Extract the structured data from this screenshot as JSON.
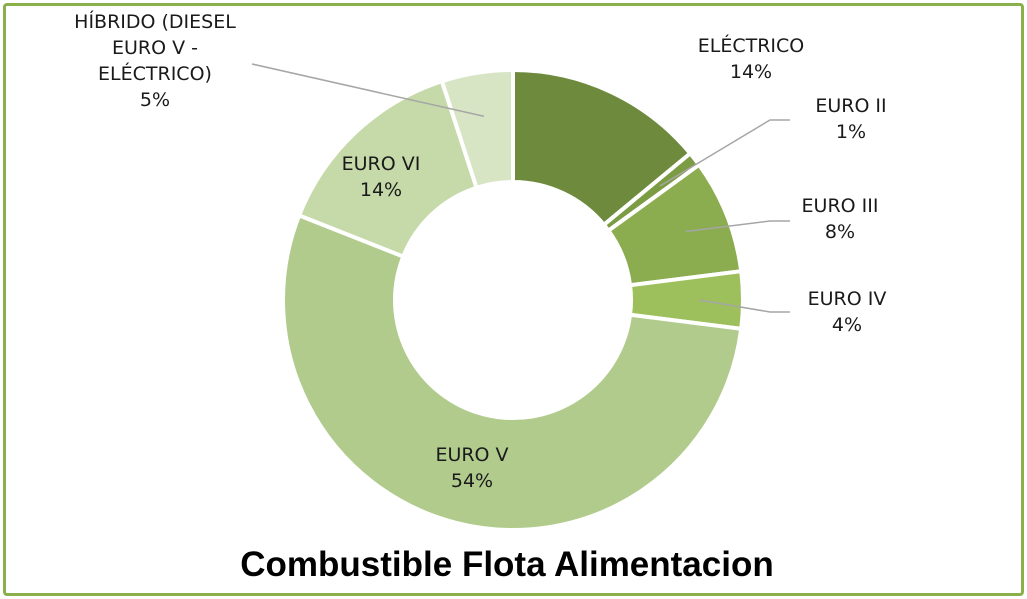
{
  "chart_data": {
    "type": "pie",
    "title": "Combustible Flota Alimentacion",
    "categories": [
      "ELÉCTRICO",
      "EURO II",
      "EURO III",
      "EURO IV",
      "EURO V",
      "EURO VI",
      "HÍBRIDO (DIESEL EURO V - ELÉCTRICO)"
    ],
    "values": [
      14,
      1,
      8,
      4,
      54,
      14,
      5
    ],
    "percent_labels": [
      "14%",
      "1%",
      "8%",
      "4%",
      "54%",
      "14%",
      "5%"
    ],
    "label_lines": [
      [
        "ELÉCTRICO",
        "14%"
      ],
      [
        "EURO II",
        "1%"
      ],
      [
        "EURO III",
        "8%"
      ],
      [
        "EURO IV",
        "4%"
      ],
      [
        "EURO V",
        "54%"
      ],
      [
        "EURO VI",
        "14%"
      ],
      [
        "HÍBRIDO (DIESEL",
        "EURO V -",
        "ELÉCTRICO)",
        "5%"
      ]
    ],
    "colors": [
      "#6d8a3d",
      "#7c9c44",
      "#8bac4f",
      "#9dbf5c",
      "#b1cb8d",
      "#c5d9a9",
      "#d8e5c5"
    ],
    "hole": "donut",
    "legend": "none"
  }
}
